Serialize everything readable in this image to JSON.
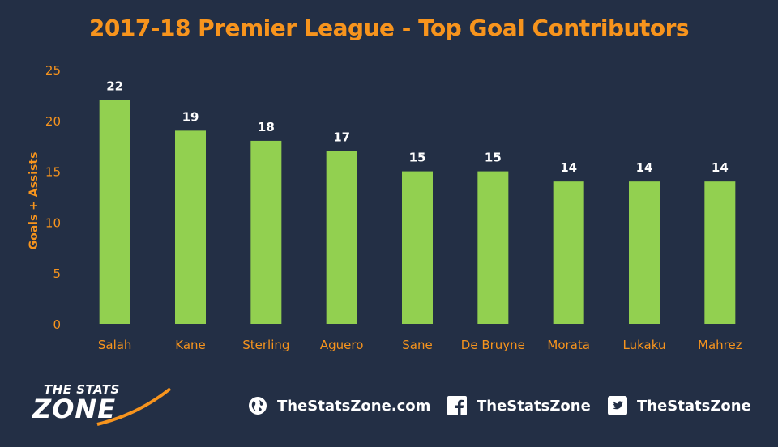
{
  "chart_data": {
    "type": "bar",
    "title": "2017-18 Premier League - Top Goal Contributors",
    "ylabel": "Goals + Assists",
    "xlabel": "",
    "ylim": [
      0,
      25
    ],
    "yticks": [
      0,
      5,
      10,
      15,
      20,
      25
    ],
    "categories": [
      "Salah",
      "Kane",
      "Sterling",
      "Aguero",
      "Sane",
      "De Bruyne",
      "Morata",
      "Lukaku",
      "Mahrez"
    ],
    "values": [
      22,
      19,
      18,
      17,
      15,
      15,
      14,
      14,
      14
    ],
    "grid": false,
    "legend": "none",
    "colors": {
      "bar": "#92d050",
      "background": "#232f45",
      "axis_text": "#f7941d",
      "data_label": "#ffffff"
    }
  },
  "footer": {
    "logo_top": "THE STATS",
    "logo_bottom": "ZONE",
    "website": "TheStatsZone.com",
    "facebook": "TheStatsZone",
    "twitter": "TheStatsZone",
    "icons": [
      "globe-icon",
      "facebook-icon",
      "twitter-icon"
    ]
  }
}
